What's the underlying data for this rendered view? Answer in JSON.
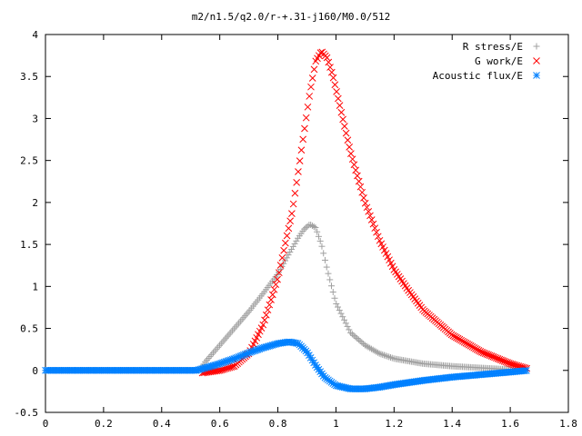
{
  "chart_data": {
    "type": "scatter",
    "title": "m2/n1.5/q2.0/r-+.31-j160/M0.0/512",
    "xlabel": "",
    "ylabel": "",
    "xlim": [
      0,
      1.8
    ],
    "ylim": [
      -0.5,
      4
    ],
    "x_ticks": [
      "0",
      "0.2",
      "0.4",
      "0.6",
      "0.8",
      "1",
      "1.2",
      "1.4",
      "1.6",
      "1.8"
    ],
    "y_ticks": [
      "-0.5",
      "0",
      "0.5",
      "1",
      "1.5",
      "2",
      "2.5",
      "3",
      "3.5",
      "4"
    ],
    "grid": false,
    "legend_position": "top-right",
    "series": [
      {
        "name": "R stress/E",
        "marker": "plus",
        "color": "#a0a0a0",
        "x": [
          0.0,
          0.53,
          0.55,
          0.6,
          0.65,
          0.7,
          0.75,
          0.8,
          0.84,
          0.87,
          0.89,
          0.91,
          0.93,
          0.95,
          0.97,
          1.0,
          1.05,
          1.1,
          1.15,
          1.2,
          1.3,
          1.4,
          1.5,
          1.6,
          1.66
        ],
        "y": [
          0.0,
          0.0,
          0.1,
          0.3,
          0.5,
          0.7,
          0.92,
          1.15,
          1.4,
          1.58,
          1.68,
          1.74,
          1.7,
          1.5,
          1.2,
          0.8,
          0.45,
          0.3,
          0.2,
          0.14,
          0.08,
          0.05,
          0.03,
          0.01,
          0.0
        ]
      },
      {
        "name": "G work/E",
        "marker": "cross",
        "color": "#ff0000",
        "x": [
          0.54,
          0.6,
          0.65,
          0.7,
          0.75,
          0.8,
          0.85,
          0.88,
          0.91,
          0.93,
          0.95,
          0.97,
          0.99,
          1.02,
          1.05,
          1.1,
          1.15,
          1.2,
          1.25,
          1.3,
          1.4,
          1.5,
          1.6,
          1.66
        ],
        "y": [
          -0.03,
          0.0,
          0.05,
          0.2,
          0.55,
          1.1,
          1.9,
          2.6,
          3.3,
          3.68,
          3.8,
          3.72,
          3.5,
          3.05,
          2.6,
          2.0,
          1.55,
          1.2,
          0.95,
          0.72,
          0.42,
          0.22,
          0.08,
          0.02
        ]
      },
      {
        "name": "Acoustic flux/E",
        "marker": "star",
        "color": "#0080ff",
        "x": [
          0.0,
          0.52,
          0.55,
          0.6,
          0.65,
          0.7,
          0.75,
          0.8,
          0.84,
          0.87,
          0.9,
          0.93,
          0.96,
          1.0,
          1.05,
          1.1,
          1.15,
          1.2,
          1.3,
          1.4,
          1.5,
          1.6,
          1.66
        ],
        "y": [
          0.0,
          0.0,
          0.03,
          0.08,
          0.14,
          0.21,
          0.27,
          0.32,
          0.34,
          0.32,
          0.22,
          0.06,
          -0.08,
          -0.18,
          -0.22,
          -0.22,
          -0.2,
          -0.17,
          -0.12,
          -0.08,
          -0.05,
          -0.02,
          0.0
        ]
      }
    ]
  }
}
